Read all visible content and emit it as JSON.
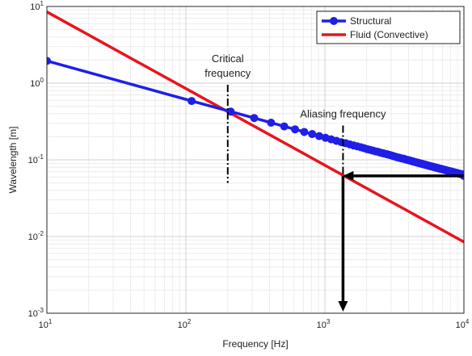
{
  "chart_data": {
    "type": "line",
    "xscale": "log",
    "yscale": "log",
    "xlim": [
      10,
      10000
    ],
    "ylim": [
      0.001,
      10
    ],
    "xlabel": "Frequency [Hz]",
    "ylabel": "Wavelength [m]",
    "grid": true,
    "legend_position": "top-right",
    "x_ticks": [
      {
        "base": "10",
        "exp": "1"
      },
      {
        "base": "10",
        "exp": "2"
      },
      {
        "base": "10",
        "exp": "3"
      },
      {
        "base": "10",
        "exp": "4"
      }
    ],
    "y_ticks": [
      {
        "base": "10",
        "exp": "-3"
      },
      {
        "base": "10",
        "exp": "-2"
      },
      {
        "base": "10",
        "exp": "-1"
      },
      {
        "base": "10",
        "exp": "0"
      },
      {
        "base": "10",
        "exp": "1"
      }
    ],
    "series": [
      {
        "name": "Structural",
        "color": "#1f1fe6",
        "marker": "circle",
        "x": [
          10,
          110,
          210,
          310,
          410,
          510,
          610,
          710,
          810,
          910,
          1010,
          1110,
          1210,
          1310,
          1410,
          1510,
          1610,
          1710,
          1810,
          1910,
          2010,
          2110,
          2210,
          2310,
          2410,
          2510,
          2610,
          2710,
          2810,
          2910,
          3010,
          3110,
          3210,
          3310,
          3410,
          3510,
          3610,
          3710,
          3810,
          3910,
          4010,
          4110,
          4210,
          4310,
          4410,
          4510,
          4610,
          4710,
          4810,
          4910,
          5010,
          5110,
          5210,
          5310,
          5410,
          5510,
          5610,
          5710,
          5810,
          5910,
          6010,
          6110,
          6210,
          6310,
          6410,
          6510,
          6610,
          6710,
          6810,
          6910,
          7010,
          7110,
          7210,
          7310,
          7410,
          7510,
          7610,
          7710,
          7810,
          7910,
          8010,
          8110,
          8210,
          8310,
          8410,
          8510,
          8610,
          8710,
          8810,
          8910,
          9010,
          9110,
          9210,
          9310,
          9410,
          9510,
          9610,
          9710,
          9810,
          9910,
          10000
        ],
        "y": [
          1.95,
          0.585,
          0.426,
          0.351,
          0.305,
          0.273,
          0.25,
          0.231,
          0.217,
          0.204,
          0.194,
          0.185,
          0.177,
          0.17,
          0.165,
          0.159,
          0.154,
          0.15,
          0.146,
          0.142,
          0.138,
          0.135,
          0.132,
          0.129,
          0.127,
          0.124,
          0.122,
          0.12,
          0.118,
          0.116,
          0.114,
          0.112,
          0.11,
          0.108,
          0.107,
          0.105,
          0.104,
          0.103,
          0.101,
          0.1,
          0.0987,
          0.0975,
          0.0963,
          0.0952,
          0.0942,
          0.0931,
          0.0921,
          0.0912,
          0.0902,
          0.0893,
          0.0885,
          0.0876,
          0.0868,
          0.086,
          0.0852,
          0.0845,
          0.0837,
          0.083,
          0.0823,
          0.0817,
          0.081,
          0.0804,
          0.0797,
          0.0791,
          0.0785,
          0.078,
          0.0774,
          0.0768,
          0.0763,
          0.0758,
          0.0753,
          0.0748,
          0.0743,
          0.0738,
          0.0733,
          0.0728,
          0.0724,
          0.072,
          0.0715,
          0.0711,
          0.0707,
          0.0703,
          0.0699,
          0.0695,
          0.0691,
          0.0687,
          0.0683,
          0.068,
          0.0676,
          0.0673,
          0.0669,
          0.0666,
          0.0662,
          0.0659,
          0.0656,
          0.0653,
          0.065,
          0.0646,
          0.0643,
          0.064,
          0.0617
        ]
      },
      {
        "name": "Fluid (Convective)",
        "color": "#e8141e",
        "marker": "none",
        "x": [
          10,
          10000
        ],
        "y": [
          8.5,
          0.0085
        ]
      }
    ],
    "annotations": [
      {
        "text_lines": [
          "Critical",
          "frequency"
        ],
        "x": 200,
        "line_y": [
          0.05,
          0.95
        ]
      },
      {
        "text_lines": [
          "Aliasing frequency"
        ],
        "x": 1350,
        "line_y": [
          0.0011,
          0.28
        ]
      }
    ],
    "arrows": [
      {
        "from": [
          10000,
          0.0617
        ],
        "to": [
          1350,
          0.0617
        ]
      },
      {
        "from": [
          1350,
          0.0617
        ],
        "to": [
          1350,
          0.00105
        ]
      }
    ]
  }
}
